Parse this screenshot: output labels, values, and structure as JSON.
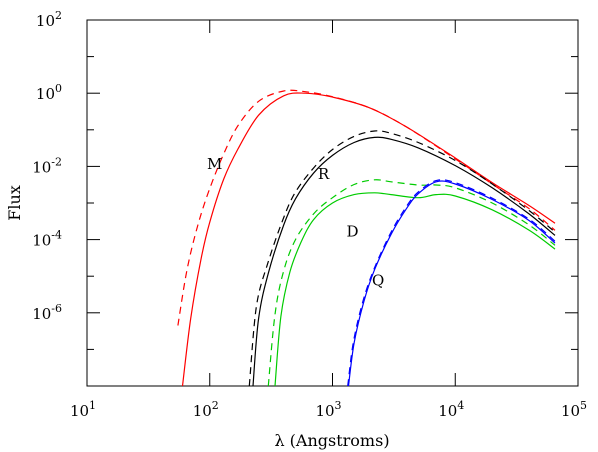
{
  "chart_data": {
    "type": "line",
    "xlabel": "λ (Angstroms)",
    "ylabel": "Flux",
    "xscale": "log",
    "yscale": "log",
    "xlim": [
      10,
      100000
    ],
    "ylim": [
      1e-08,
      100
    ],
    "x_ticks": [
      {
        "base": "10",
        "exp": "1",
        "value": 10
      },
      {
        "base": "10",
        "exp": "2",
        "value": 100
      },
      {
        "base": "10",
        "exp": "3",
        "value": 1000
      },
      {
        "base": "10",
        "exp": "4",
        "value": 10000
      },
      {
        "base": "10",
        "exp": "5",
        "value": 100000
      }
    ],
    "y_ticks": [
      {
        "base": "10",
        "exp": "2",
        "value": 100
      },
      {
        "base": "10",
        "exp": "0",
        "value": 1
      },
      {
        "base": "10",
        "exp": "-2",
        "value": 0.01
      },
      {
        "base": "10",
        "exp": "-4",
        "value": 0.0001
      },
      {
        "base": "10",
        "exp": "-6",
        "value": 1e-06
      }
    ],
    "series_labels": [
      {
        "text": "M",
        "x": 95,
        "y": 0.0085
      },
      {
        "text": "R",
        "x": 760,
        "y": 0.0045
      },
      {
        "text": "D",
        "x": 1300,
        "y": 0.00012
      },
      {
        "text": "Q",
        "x": 2100,
        "y": 5.5e-06
      }
    ],
    "series": [
      {
        "color": "#ff0000",
        "dash": false,
        "x": [
          60,
          70,
          85,
          100,
          130,
          170,
          250,
          400,
          600,
          1000,
          2000,
          4000,
          10000,
          20000,
          40000,
          65000
        ],
        "y": [
          1e-08,
          7e-07,
          3e-05,
          0.0003,
          0.0045,
          0.03,
          0.25,
          0.85,
          1.0,
          0.78,
          0.4,
          0.12,
          0.017,
          0.0036,
          0.00085,
          0.00028
        ]
      },
      {
        "color": "#ff0000",
        "dash": true,
        "x": [
          55,
          65,
          80,
          100,
          130,
          170,
          250,
          400,
          600,
          1000,
          2000,
          4000,
          10000,
          20000,
          40000,
          65000
        ],
        "y": [
          4.5e-07,
          1.4e-05,
          0.00025,
          0.0025,
          0.022,
          0.13,
          0.6,
          1.15,
          1.1,
          0.8,
          0.4,
          0.12,
          0.016,
          0.0033,
          0.0007,
          0.00018
        ]
      },
      {
        "color": "#000000",
        "dash": false,
        "x": [
          225,
          250,
          300,
          400,
          500,
          700,
          1000,
          1500,
          2200,
          3000,
          5000,
          10000,
          20000,
          40000,
          65000
        ],
        "y": [
          1e-08,
          7e-07,
          1.2e-05,
          0.00025,
          0.0013,
          0.0065,
          0.02,
          0.045,
          0.062,
          0.055,
          0.032,
          0.0105,
          0.0026,
          0.0005,
          0.00013
        ]
      },
      {
        "color": "#000000",
        "dash": true,
        "x": [
          210,
          240,
          300,
          400,
          500,
          700,
          1000,
          1500,
          2200,
          3000,
          5000,
          10000,
          20000,
          40000,
          65000
        ],
        "y": [
          1e-08,
          1.5e-06,
          2.5e-05,
          0.0004,
          0.002,
          0.009,
          0.029,
          0.066,
          0.093,
          0.08,
          0.045,
          0.0145,
          0.0033,
          0.00062,
          0.00016
        ]
      },
      {
        "color": "#00cc00",
        "dash": false,
        "x": [
          340,
          380,
          450,
          550,
          700,
          1000,
          1500,
          2200,
          3000,
          5000,
          7000,
          10000,
          20000,
          40000,
          65000
        ],
        "y": [
          1e-08,
          8e-07,
          1.3e-05,
          8e-05,
          0.00035,
          0.001,
          0.0017,
          0.0019,
          0.0017,
          0.0014,
          0.0017,
          0.00155,
          0.00065,
          0.00018,
          5.5e-05
        ]
      },
      {
        "color": "#00cc00",
        "dash": true,
        "x": [
          300,
          340,
          400,
          500,
          700,
          1000,
          1500,
          2200,
          3000,
          5000,
          7000,
          10000,
          20000,
          40000,
          65000
        ],
        "y": [
          1e-08,
          9e-07,
          1.4e-05,
          0.0001,
          0.0005,
          0.0014,
          0.0032,
          0.0043,
          0.0038,
          0.0031,
          0.0031,
          0.0026,
          0.001,
          0.00025,
          7e-05
        ]
      },
      {
        "color": "#0000ff",
        "dash": false,
        "x": [
          1350,
          1500,
          1800,
          2200,
          3000,
          4000,
          5000,
          7000,
          10000,
          20000,
          40000,
          65000
        ],
        "y": [
          1e-08,
          1.5e-07,
          2e-06,
          1.5e-05,
          0.00014,
          0.0007,
          0.0018,
          0.0038,
          0.0033,
          0.00125,
          0.00033,
          8e-05
        ]
      },
      {
        "color": "#0000ff",
        "dash": true,
        "x": [
          1330,
          1480,
          1780,
          2200,
          3000,
          4000,
          5000,
          7000,
          10000,
          20000,
          40000,
          65000
        ],
        "y": [
          1e-08,
          1.6e-07,
          2.2e-06,
          1.7e-05,
          0.00016,
          0.0008,
          0.002,
          0.0041,
          0.0036,
          0.00135,
          0.00036,
          9e-05
        ]
      }
    ]
  }
}
